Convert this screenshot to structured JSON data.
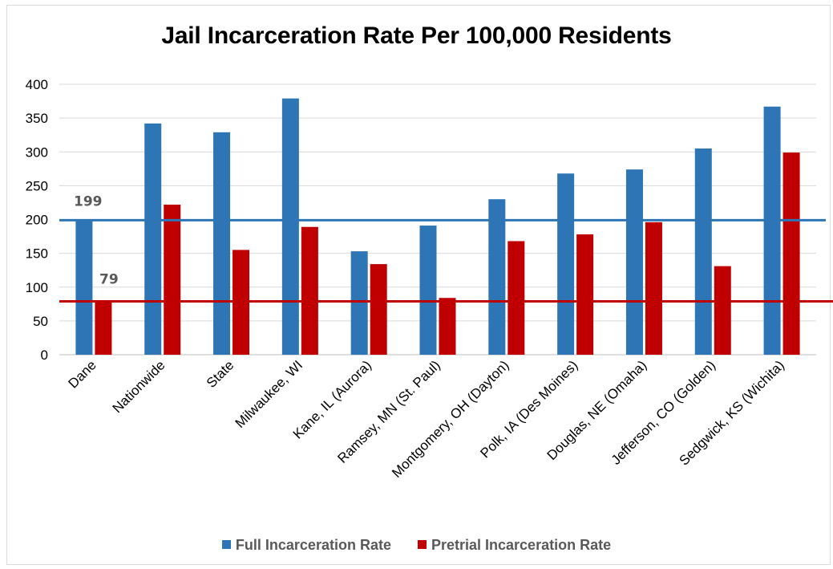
{
  "chart_data": {
    "type": "bar",
    "title": "Jail Incarceration Rate Per 100,000 Residents",
    "categories": [
      "Dane",
      "Nationwide",
      "State",
      "Milwaukee, WI",
      "Kane, IL (Aurora)",
      "Ramsey, MN (St. Paul)",
      "Montgomery, OH (Dayton)",
      "Polk, IA (Des Moines)",
      "Douglas, NE (Omaha)",
      "Jefferson, CO (Golden)",
      "Sedgwick, KS (Wichita)"
    ],
    "series": [
      {
        "name": "Full Incarceration Rate",
        "color": "#2e75b6",
        "values": [
          199,
          342,
          329,
          379,
          153,
          191,
          230,
          268,
          274,
          305,
          367
        ]
      },
      {
        "name": "Pretrial Incarceration Rate",
        "color": "#c00000",
        "values": [
          79,
          222,
          155,
          189,
          134,
          84,
          168,
          178,
          196,
          131,
          299
        ]
      }
    ],
    "reference_lines": [
      {
        "value": 199,
        "label": "199",
        "color": "#2e75b6"
      },
      {
        "value": 79,
        "label": "79",
        "color": "#c00000"
      }
    ],
    "ylim": [
      0,
      400
    ],
    "yticks": [
      0,
      50,
      100,
      150,
      200,
      250,
      300,
      350,
      400
    ],
    "grid": true,
    "legend_position": "bottom",
    "xlabel": "",
    "ylabel": ""
  }
}
